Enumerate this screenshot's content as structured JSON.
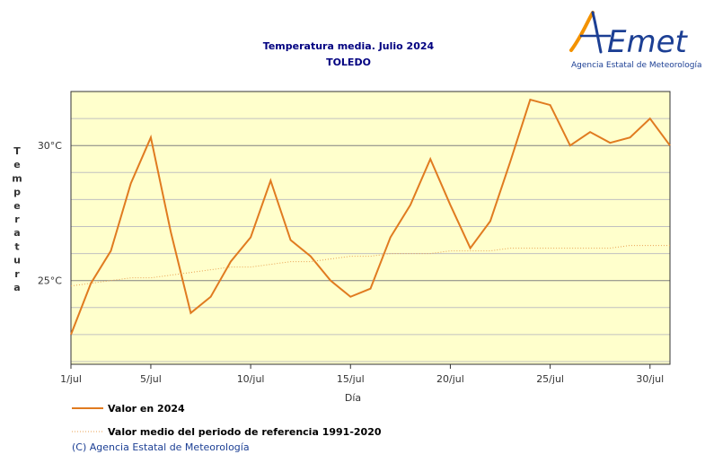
{
  "logo": {
    "wordmark": "AEmet",
    "subtitle": "Agencia Estatal de Meteorología",
    "colors": {
      "blue": "#1c3f94",
      "orange": "#f39200"
    }
  },
  "copyright": "(C) Agencia Estatal de Meteorología",
  "chart_data": {
    "type": "line",
    "title": "Temperatura media. Julio 2024",
    "subtitle": "TOLEDO",
    "xlabel": "Día",
    "ylabel": "Temperatura",
    "x": [
      1,
      2,
      3,
      4,
      5,
      6,
      7,
      8,
      9,
      10,
      11,
      12,
      13,
      14,
      15,
      16,
      17,
      18,
      19,
      20,
      21,
      22,
      23,
      24,
      25,
      26,
      27,
      28,
      29,
      30,
      31
    ],
    "xlim": [
      1,
      31
    ],
    "ylim": [
      21.9,
      32
    ],
    "xticks": [
      {
        "value": 1,
        "label": "1/jul"
      },
      {
        "value": 5,
        "label": "5/jul"
      },
      {
        "value": 10,
        "label": "10/jul"
      },
      {
        "value": 15,
        "label": "15/jul"
      },
      {
        "value": 20,
        "label": "20/jul"
      },
      {
        "value": 25,
        "label": "25/jul"
      },
      {
        "value": 30,
        "label": "30/jul"
      }
    ],
    "yticks": [
      {
        "value": 25,
        "label": "25°C"
      },
      {
        "value": 30,
        "label": "30°C"
      }
    ],
    "minor_y_step": 1,
    "grid": true,
    "legend_position": "bottom-left",
    "series": [
      {
        "name": "Valor en 2024",
        "color": "#e07b20",
        "style": "solid",
        "values": [
          23.0,
          24.9,
          26.1,
          28.6,
          30.3,
          26.8,
          23.8,
          24.4,
          25.7,
          26.6,
          28.7,
          26.5,
          25.9,
          25.0,
          24.4,
          24.7,
          26.6,
          27.8,
          29.5,
          27.8,
          26.2,
          27.2,
          29.4,
          31.7,
          31.5,
          30.0,
          30.5,
          30.1,
          30.3,
          31.0,
          30.0
        ]
      },
      {
        "name": "Valor medio del periodo de referencia 1991-2020",
        "color": "#e8a050",
        "style": "dotted",
        "values": [
          24.8,
          24.9,
          25.0,
          25.1,
          25.1,
          25.2,
          25.3,
          25.4,
          25.5,
          25.5,
          25.6,
          25.7,
          25.7,
          25.8,
          25.9,
          25.9,
          26.0,
          26.0,
          26.0,
          26.1,
          26.1,
          26.1,
          26.2,
          26.2,
          26.2,
          26.2,
          26.2,
          26.2,
          26.3,
          26.3,
          26.3
        ]
      }
    ],
    "colors": {
      "plot_background": "#ffffcc",
      "grid_major": "#808080",
      "grid_minor": "#c0c0c0",
      "frame": "#333333"
    }
  }
}
